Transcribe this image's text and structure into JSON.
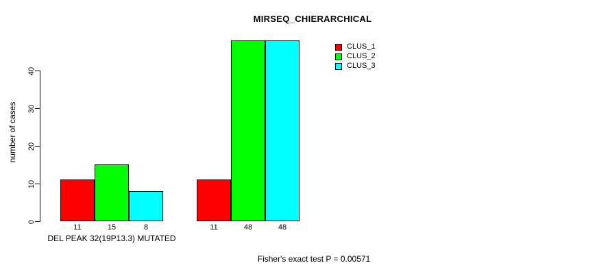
{
  "chart_data": {
    "type": "bar",
    "title": "MIRSEQ_CHIERARCHICAL",
    "ylabel": "number of cases",
    "xlabel": "DEL PEAK 32(19P13.3) MUTATED",
    "annotation": "Fisher's exact test P = 0.00571",
    "ylim": [
      0,
      48
    ],
    "yticks": [
      0,
      10,
      20,
      30,
      40
    ],
    "grid": false,
    "legend_position": "top-right",
    "groups": 2,
    "series": [
      {
        "name": "CLUS_1",
        "color": "#ff0000",
        "values": [
          11,
          11
        ]
      },
      {
        "name": "CLUS_2",
        "color": "#00ff00",
        "values": [
          15,
          48
        ]
      },
      {
        "name": "CLUS_3",
        "color": "#00ffff",
        "values": [
          8,
          48
        ]
      }
    ],
    "bar_value_labels": [
      [
        "11",
        "15",
        "8"
      ],
      [
        "11",
        "48",
        "48"
      ]
    ]
  }
}
